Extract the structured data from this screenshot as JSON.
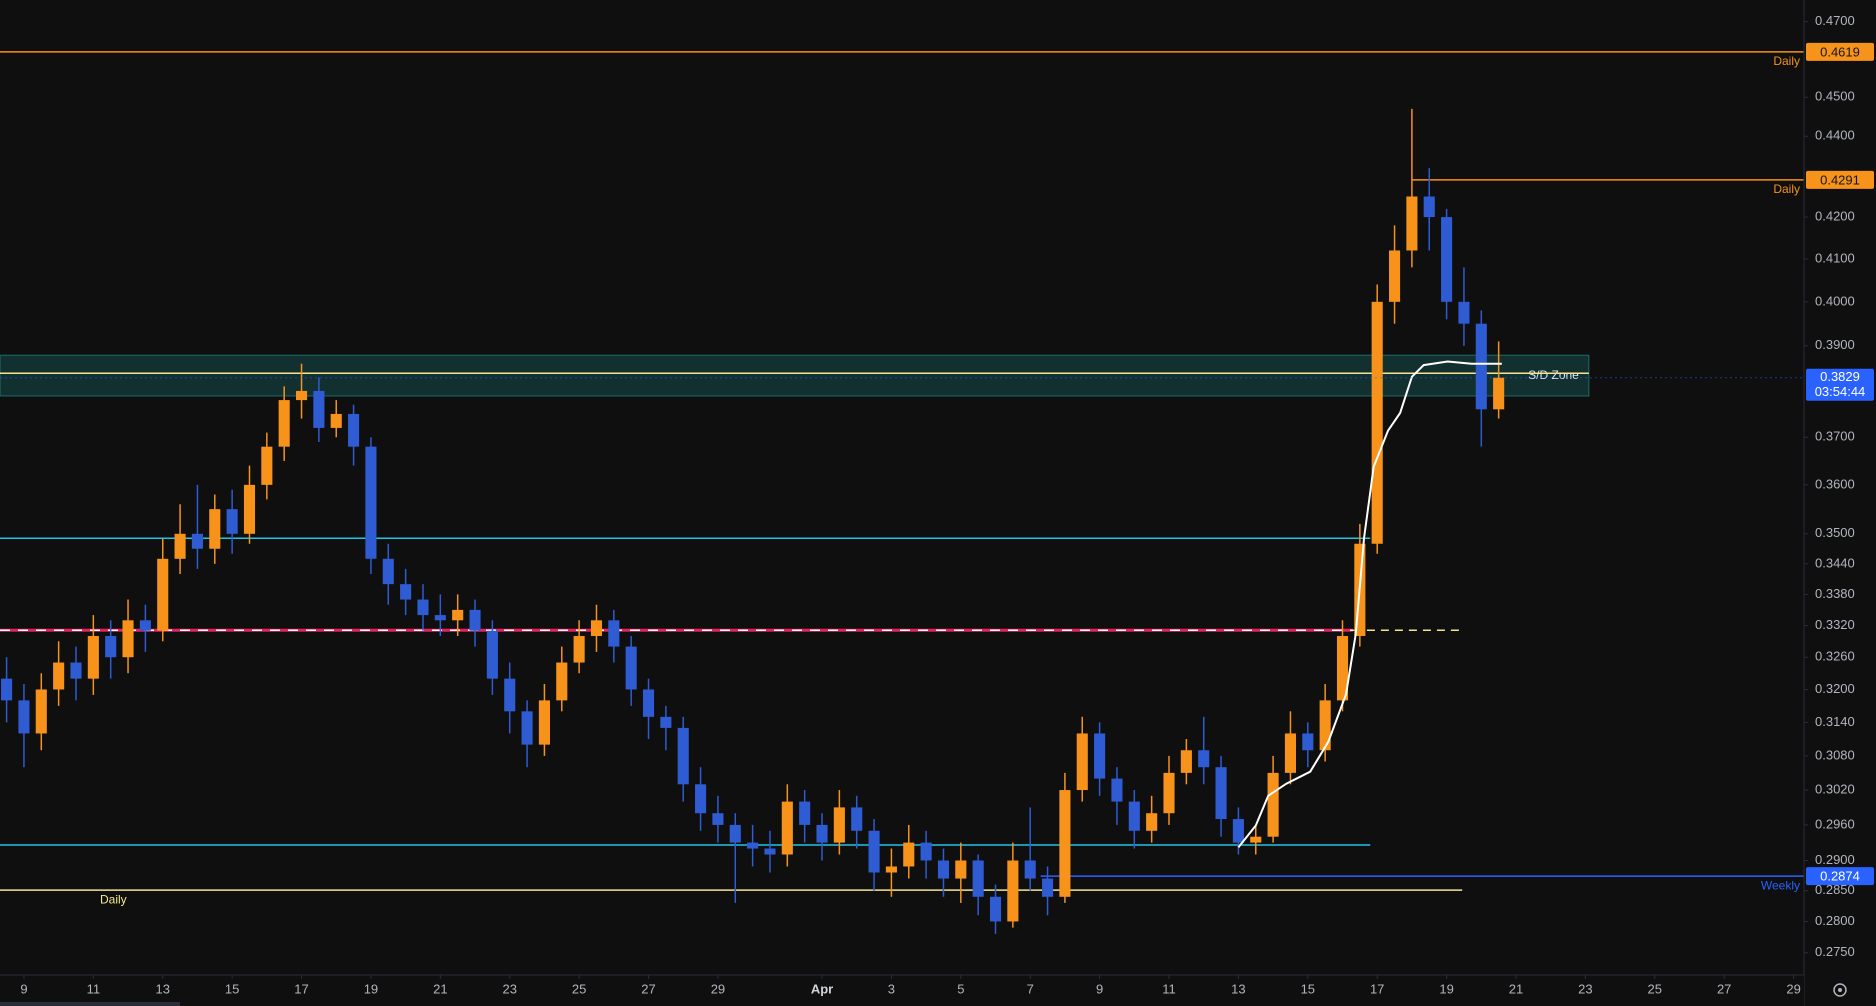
{
  "chart_data": {
    "type": "candlestick",
    "log_scale": true,
    "up_color": "#f7931a",
    "down_color": "#2f5bd3",
    "xlim": [
      -0.69,
      51.3
    ],
    "ylim": [
      0.2715,
      0.4759
    ],
    "xticks": [
      {
        "value": 0,
        "label": "9"
      },
      {
        "value": 2,
        "label": "11"
      },
      {
        "value": 4,
        "label": "13"
      },
      {
        "value": 6,
        "label": "15"
      },
      {
        "value": 8,
        "label": "17"
      },
      {
        "value": 10,
        "label": "19"
      },
      {
        "value": 12,
        "label": "21"
      },
      {
        "value": 14,
        "label": "23"
      },
      {
        "value": 16,
        "label": "25"
      },
      {
        "value": 18,
        "label": "27"
      },
      {
        "value": 20,
        "label": "29"
      },
      {
        "value": 23,
        "label": "Apr"
      },
      {
        "value": 25,
        "label": "3"
      },
      {
        "value": 27,
        "label": "5"
      },
      {
        "value": 29,
        "label": "7"
      },
      {
        "value": 31,
        "label": "9"
      },
      {
        "value": 33,
        "label": "11"
      },
      {
        "value": 35,
        "label": "13"
      },
      {
        "value": 37,
        "label": "15"
      },
      {
        "value": 39,
        "label": "17"
      },
      {
        "value": 41,
        "label": "19"
      },
      {
        "value": 43,
        "label": "21"
      },
      {
        "value": 45,
        "label": "23"
      },
      {
        "value": 47,
        "label": "25"
      },
      {
        "value": 49,
        "label": "27"
      },
      {
        "value": 51,
        "label": "29"
      }
    ],
    "yticks": [
      {
        "value": 0.47,
        "label": "0.4700"
      },
      {
        "value": 0.45,
        "label": "0.4500"
      },
      {
        "value": 0.44,
        "label": "0.4400"
      },
      {
        "value": 0.42,
        "label": "0.4200"
      },
      {
        "value": 0.41,
        "label": "0.4100"
      },
      {
        "value": 0.4,
        "label": "0.4000"
      },
      {
        "value": 0.39,
        "label": "0.3900"
      },
      {
        "value": 0.37,
        "label": "0.3700"
      },
      {
        "value": 0.36,
        "label": "0.3600"
      },
      {
        "value": 0.35,
        "label": "0.3500"
      },
      {
        "value": 0.344,
        "label": "0.3440"
      },
      {
        "value": 0.338,
        "label": "0.3380"
      },
      {
        "value": 0.332,
        "label": "0.3320"
      },
      {
        "value": 0.326,
        "label": "0.3260"
      },
      {
        "value": 0.32,
        "label": "0.3200"
      },
      {
        "value": 0.314,
        "label": "0.3140"
      },
      {
        "value": 0.308,
        "label": "0.3080"
      },
      {
        "value": 0.302,
        "label": "0.3020"
      },
      {
        "value": 0.296,
        "label": "0.2960"
      },
      {
        "value": 0.29,
        "label": "0.2900"
      },
      {
        "value": 0.285,
        "label": "0.2850"
      },
      {
        "value": 0.28,
        "label": "0.2800"
      },
      {
        "value": 0.275,
        "label": "0.2750"
      }
    ],
    "x": [
      -0.5,
      0,
      0.5,
      1,
      1.5,
      2,
      2.5,
      3,
      3.5,
      4,
      4.5,
      5,
      5.5,
      6,
      6.5,
      7,
      7.5,
      8,
      8.5,
      9,
      9.5,
      10,
      10.5,
      11,
      11.5,
      12,
      12.5,
      13,
      13.5,
      14,
      14.5,
      15,
      15.5,
      16,
      16.5,
      17,
      17.5,
      18,
      18.5,
      19,
      19.5,
      20,
      20.5,
      21,
      21.5,
      22,
      22.5,
      23,
      23.5,
      24,
      24.5,
      25,
      25.5,
      26,
      26.5,
      27,
      27.5,
      28,
      28.5,
      29,
      29.5,
      30,
      30.5,
      31,
      31.5,
      32,
      32.5,
      33,
      33.5,
      34,
      34.5,
      35,
      35.5,
      36,
      36.5,
      37,
      37.5,
      38,
      38.5,
      39,
      39.5,
      40,
      40.5,
      41,
      41.5,
      42,
      42.5
    ],
    "open": [
      0.322,
      0.318,
      0.312,
      0.32,
      0.325,
      0.322,
      0.33,
      0.326,
      0.333,
      0.331,
      0.345,
      0.35,
      0.347,
      0.355,
      0.35,
      0.36,
      0.368,
      0.378,
      0.38,
      0.372,
      0.375,
      0.368,
      0.345,
      0.34,
      0.337,
      0.334,
      0.333,
      0.335,
      0.331,
      0.322,
      0.316,
      0.31,
      0.318,
      0.325,
      0.33,
      0.333,
      0.328,
      0.32,
      0.315,
      0.313,
      0.303,
      0.298,
      0.296,
      0.293,
      0.292,
      0.291,
      0.3,
      0.296,
      0.293,
      0.299,
      0.295,
      0.288,
      0.289,
      0.293,
      0.29,
      0.287,
      0.29,
      0.284,
      0.28,
      0.29,
      0.287,
      0.284,
      0.302,
      0.312,
      0.304,
      0.3,
      0.295,
      0.298,
      0.305,
      0.309,
      0.306,
      0.297,
      0.293,
      0.294,
      0.305,
      0.312,
      0.309,
      0.318,
      0.33,
      0.348,
      0.4,
      0.412,
      0.425,
      0.42,
      0.4,
      0.395,
      0.376
    ],
    "high": [
      0.326,
      0.321,
      0.323,
      0.329,
      0.328,
      0.334,
      0.333,
      0.337,
      0.336,
      0.349,
      0.356,
      0.36,
      0.358,
      0.359,
      0.364,
      0.371,
      0.381,
      0.386,
      0.383,
      0.378,
      0.377,
      0.37,
      0.348,
      0.343,
      0.34,
      0.338,
      0.338,
      0.337,
      0.333,
      0.325,
      0.318,
      0.321,
      0.328,
      0.333,
      0.336,
      0.335,
      0.33,
      0.322,
      0.317,
      0.315,
      0.306,
      0.301,
      0.298,
      0.296,
      0.295,
      0.303,
      0.302,
      0.298,
      0.302,
      0.301,
      0.297,
      0.292,
      0.296,
      0.295,
      0.292,
      0.293,
      0.291,
      0.286,
      0.293,
      0.299,
      0.289,
      0.305,
      0.315,
      0.314,
      0.306,
      0.302,
      0.301,
      0.308,
      0.311,
      0.315,
      0.308,
      0.299,
      0.296,
      0.308,
      0.316,
      0.314,
      0.321,
      0.333,
      0.352,
      0.404,
      0.418,
      0.447,
      0.432,
      0.422,
      0.408,
      0.398,
      0.391
    ],
    "low": [
      0.314,
      0.306,
      0.309,
      0.317,
      0.318,
      0.319,
      0.322,
      0.323,
      0.327,
      0.329,
      0.342,
      0.343,
      0.344,
      0.346,
      0.348,
      0.357,
      0.365,
      0.374,
      0.369,
      0.37,
      0.364,
      0.342,
      0.336,
      0.334,
      0.331,
      0.33,
      0.33,
      0.328,
      0.319,
      0.312,
      0.306,
      0.308,
      0.316,
      0.323,
      0.327,
      0.325,
      0.317,
      0.311,
      0.309,
      0.3,
      0.295,
      0.293,
      0.283,
      0.289,
      0.288,
      0.289,
      0.293,
      0.29,
      0.291,
      0.292,
      0.285,
      0.284,
      0.287,
      0.287,
      0.284,
      0.283,
      0.281,
      0.278,
      0.279,
      0.285,
      0.281,
      0.283,
      0.3,
      0.301,
      0.296,
      0.292,
      0.293,
      0.296,
      0.303,
      0.303,
      0.294,
      0.291,
      0.291,
      0.293,
      0.303,
      0.306,
      0.307,
      0.316,
      0.328,
      0.346,
      0.395,
      0.408,
      0.412,
      0.396,
      0.39,
      0.368,
      0.374
    ],
    "close": [
      0.318,
      0.312,
      0.32,
      0.325,
      0.322,
      0.33,
      0.326,
      0.333,
      0.331,
      0.345,
      0.35,
      0.347,
      0.355,
      0.35,
      0.36,
      0.368,
      0.378,
      0.38,
      0.372,
      0.375,
      0.368,
      0.345,
      0.34,
      0.337,
      0.334,
      0.333,
      0.335,
      0.331,
      0.322,
      0.316,
      0.31,
      0.318,
      0.325,
      0.33,
      0.333,
      0.328,
      0.32,
      0.315,
      0.313,
      0.303,
      0.298,
      0.296,
      0.293,
      0.292,
      0.291,
      0.3,
      0.296,
      0.293,
      0.299,
      0.295,
      0.288,
      0.289,
      0.293,
      0.29,
      0.287,
      0.29,
      0.284,
      0.28,
      0.29,
      0.287,
      0.284,
      0.302,
      0.312,
      0.304,
      0.3,
      0.295,
      0.298,
      0.305,
      0.309,
      0.306,
      0.297,
      0.293,
      0.294,
      0.305,
      0.312,
      0.309,
      0.318,
      0.33,
      0.348,
      0.4,
      0.412,
      0.425,
      0.42,
      0.4,
      0.395,
      0.376,
      0.3829
    ],
    "ma": {
      "color": "#ffffff",
      "x": [
        35.0,
        35.5,
        35.86,
        36.38,
        37.07,
        37.59,
        38.1,
        38.38,
        38.62,
        38.9,
        39.31,
        39.66,
        40.0,
        40.34,
        41.03,
        41.72,
        42.59
      ],
      "values": [
        0.2922,
        0.2959,
        0.301,
        0.3031,
        0.3052,
        0.3105,
        0.3191,
        0.3303,
        0.3491,
        0.3638,
        0.3714,
        0.3752,
        0.3831,
        0.3857,
        0.3865,
        0.386,
        0.386
      ]
    },
    "zone": {
      "top": 0.3879,
      "bottom": 0.3789,
      "x_end": 45.1,
      "label": "S/D Zone",
      "color": "#1f8a8a"
    },
    "levels": [
      {
        "value": 0.4619,
        "color": "#f7931a",
        "label": "Daily",
        "label_side": "right",
        "price_tag": true,
        "tag_text_color": "#131722"
      },
      {
        "value": 0.4291,
        "color": "#f7931a",
        "x_start": 40.0,
        "label": "Daily",
        "label_side": "right",
        "price_tag": true,
        "tag_text_color": "#131722"
      },
      {
        "value": 0.3839,
        "color": "#f5e68c",
        "x_end": 45.1
      },
      {
        "value": 0.3491,
        "color": "#22c3e6",
        "x_end": 38.8
      },
      {
        "value": 0.3311,
        "color": "#e0245e",
        "x_end": 38.3,
        "dash_color": "#ffffff"
      },
      {
        "value": 0.3311,
        "color": "#f5e68c",
        "x_start": 38.3,
        "x_end": 41.45,
        "dashed": true
      },
      {
        "value": 0.2926,
        "color": "#22c3e6",
        "x_end": 38.8
      },
      {
        "value": 0.2851,
        "color": "#f5e68c",
        "x_end": 41.45,
        "label": "Daily",
        "label_side": "left"
      },
      {
        "value": 0.2874,
        "color": "#2962ff",
        "x_start": 29.3,
        "label": "Weekly",
        "label_side": "right",
        "price_tag": true,
        "tag_text_color": "#ffffff"
      }
    ],
    "price": {
      "value": 0.3829,
      "countdown": "03:54:44",
      "color": "#2962ff"
    }
  }
}
